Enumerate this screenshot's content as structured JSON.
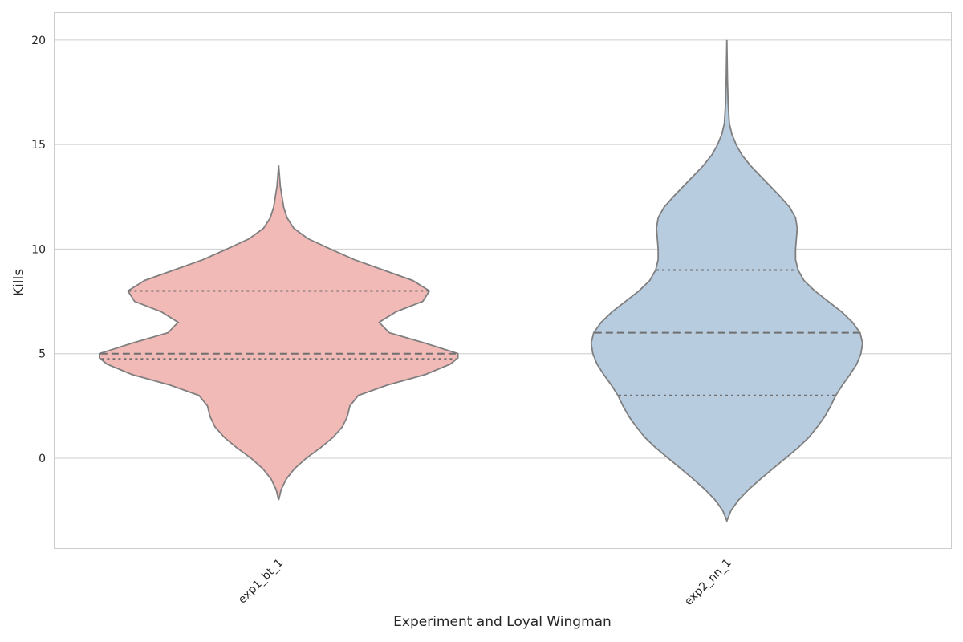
{
  "chart_data": {
    "type": "violin",
    "xlabel": "Experiment and Loyal Wingman",
    "ylabel": "Kills",
    "ylim": [
      -4.3,
      21.3
    ],
    "yticks": [
      0,
      5,
      10,
      15,
      20
    ],
    "grid": true,
    "categories": [
      "exp1_bt_1",
      "exp2_nn_1"
    ],
    "series": [
      {
        "category": "exp1_bt_1",
        "color": "#f2bab7",
        "range": [
          -2,
          14
        ],
        "quartiles": [
          4.75,
          5,
          8
        ],
        "density": [
          [
            -2.0,
            0.0
          ],
          [
            -1.5,
            0.03
          ],
          [
            -1.0,
            0.09
          ],
          [
            -0.5,
            0.19
          ],
          [
            0.0,
            0.33
          ],
          [
            0.5,
            0.5
          ],
          [
            1.0,
            0.65
          ],
          [
            1.5,
            0.76
          ],
          [
            2.0,
            0.82
          ],
          [
            2.5,
            0.85
          ],
          [
            3.0,
            0.95
          ],
          [
            3.5,
            1.3
          ],
          [
            4.0,
            1.75
          ],
          [
            4.5,
            2.05
          ],
          [
            4.8,
            2.14
          ],
          [
            5.0,
            2.14
          ],
          [
            5.5,
            1.75
          ],
          [
            6.0,
            1.32
          ],
          [
            6.5,
            1.2
          ],
          [
            7.0,
            1.4
          ],
          [
            7.5,
            1.72
          ],
          [
            8.0,
            1.8
          ],
          [
            8.5,
            1.6
          ],
          [
            9.0,
            1.25
          ],
          [
            9.5,
            0.9
          ],
          [
            10.0,
            0.62
          ],
          [
            10.5,
            0.35
          ],
          [
            11.0,
            0.18
          ],
          [
            11.5,
            0.1
          ],
          [
            12.0,
            0.06
          ],
          [
            12.5,
            0.04
          ],
          [
            13.0,
            0.02
          ],
          [
            13.5,
            0.01
          ],
          [
            14.0,
            0.0
          ]
        ]
      },
      {
        "category": "exp2_nn_1",
        "color": "#b8cce0",
        "range": [
          -3,
          20
        ],
        "quartiles": [
          3,
          6,
          9
        ],
        "density": [
          [
            -3.0,
            0.0
          ],
          [
            -2.5,
            0.05
          ],
          [
            -2.0,
            0.14
          ],
          [
            -1.5,
            0.26
          ],
          [
            -1.0,
            0.4
          ],
          [
            -0.5,
            0.55
          ],
          [
            0.0,
            0.7
          ],
          [
            0.5,
            0.85
          ],
          [
            1.0,
            0.98
          ],
          [
            1.5,
            1.08
          ],
          [
            2.0,
            1.17
          ],
          [
            2.5,
            1.24
          ],
          [
            3.0,
            1.3
          ],
          [
            3.5,
            1.38
          ],
          [
            4.0,
            1.47
          ],
          [
            4.5,
            1.55
          ],
          [
            5.0,
            1.6
          ],
          [
            5.5,
            1.62
          ],
          [
            6.0,
            1.59
          ],
          [
            6.5,
            1.5
          ],
          [
            7.0,
            1.37
          ],
          [
            7.5,
            1.21
          ],
          [
            8.0,
            1.05
          ],
          [
            8.5,
            0.92
          ],
          [
            9.0,
            0.85
          ],
          [
            9.5,
            0.82
          ],
          [
            10.0,
            0.82
          ],
          [
            10.5,
            0.83
          ],
          [
            11.0,
            0.84
          ],
          [
            11.5,
            0.82
          ],
          [
            12.0,
            0.75
          ],
          [
            12.5,
            0.64
          ],
          [
            13.0,
            0.52
          ],
          [
            13.5,
            0.4
          ],
          [
            14.0,
            0.28
          ],
          [
            14.5,
            0.18
          ],
          [
            15.0,
            0.11
          ],
          [
            15.5,
            0.06
          ],
          [
            16.0,
            0.03
          ],
          [
            17.0,
            0.015
          ],
          [
            18.0,
            0.008
          ],
          [
            19.0,
            0.004
          ],
          [
            20.0,
            0.0
          ]
        ]
      }
    ]
  }
}
